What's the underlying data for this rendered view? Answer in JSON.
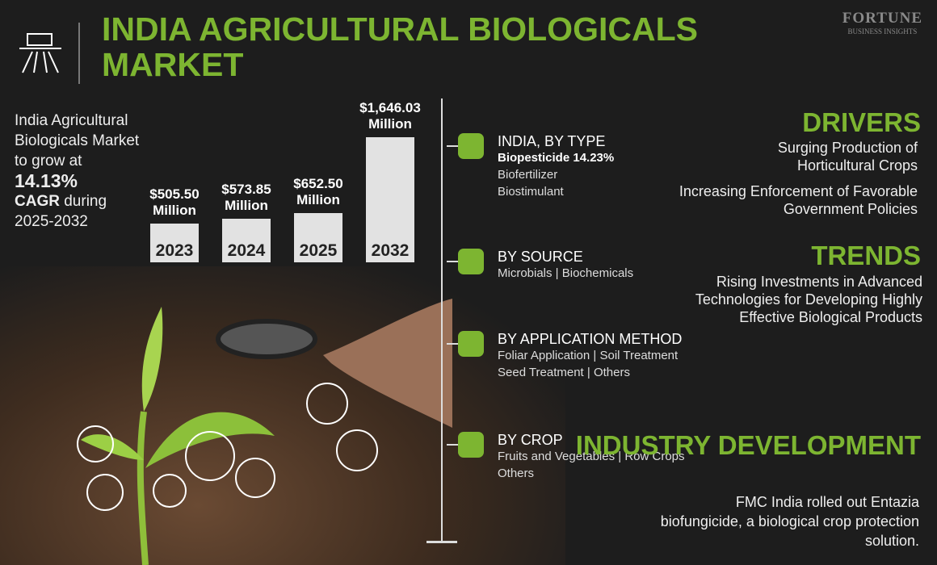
{
  "header": {
    "title": "INDIA AGRICULTURAL BIOLOGICALS MARKET",
    "brand": "FORTUNE",
    "brand_sub": "BUSINESS INSIGHTS"
  },
  "summary": {
    "intro": "India Agricultural Biologicals Market to grow at",
    "cagr": "14.13%",
    "cagr_label": "CAGR",
    "period": "during 2025-2032"
  },
  "chart_data": {
    "type": "bar",
    "categories": [
      "2023",
      "2024",
      "2025",
      "2032"
    ],
    "values": [
      505.5,
      573.85,
      652.5,
      1646.03
    ],
    "value_labels": [
      "$505.50 Million",
      "$573.85 Million",
      "$652.50 Million",
      "$1,646.03 Million"
    ],
    "color": "#e2e2e2"
  },
  "segments": [
    {
      "title": "INDIA, BY TYPE",
      "lines": [
        [
          "Biopesticide 14.23%"
        ],
        [
          "Biofertilizer"
        ],
        [
          "Biostimulant"
        ]
      ]
    },
    {
      "title": "BY SOURCE",
      "lines": [
        [
          "Microbials",
          "Biochemicals"
        ]
      ]
    },
    {
      "title": "BY APPLICATION METHOD",
      "lines": [
        [
          "Foliar Application",
          "Soil Treatment"
        ],
        [
          "Seed Treatment",
          "Others"
        ]
      ]
    },
    {
      "title": "BY CROP",
      "lines": [
        [
          "Fruits and Vegetables",
          "Row Crops"
        ],
        [
          "Others"
        ]
      ]
    }
  ],
  "drivers": {
    "title": "DRIVERS",
    "items": [
      "Surging Production of Horticultural Crops",
      "Increasing Enforcement of Favorable Government Policies"
    ]
  },
  "trends": {
    "title": "TRENDS",
    "items": [
      "Rising Investments in Advanced Technologies for Developing Highly Effective Biological Products"
    ]
  },
  "industry_development": {
    "title": "INDUSTRY DEVELOPMENT",
    "items": [
      "FMC India rolled out Entazia biofungicide, a biological crop protection solution."
    ]
  }
}
